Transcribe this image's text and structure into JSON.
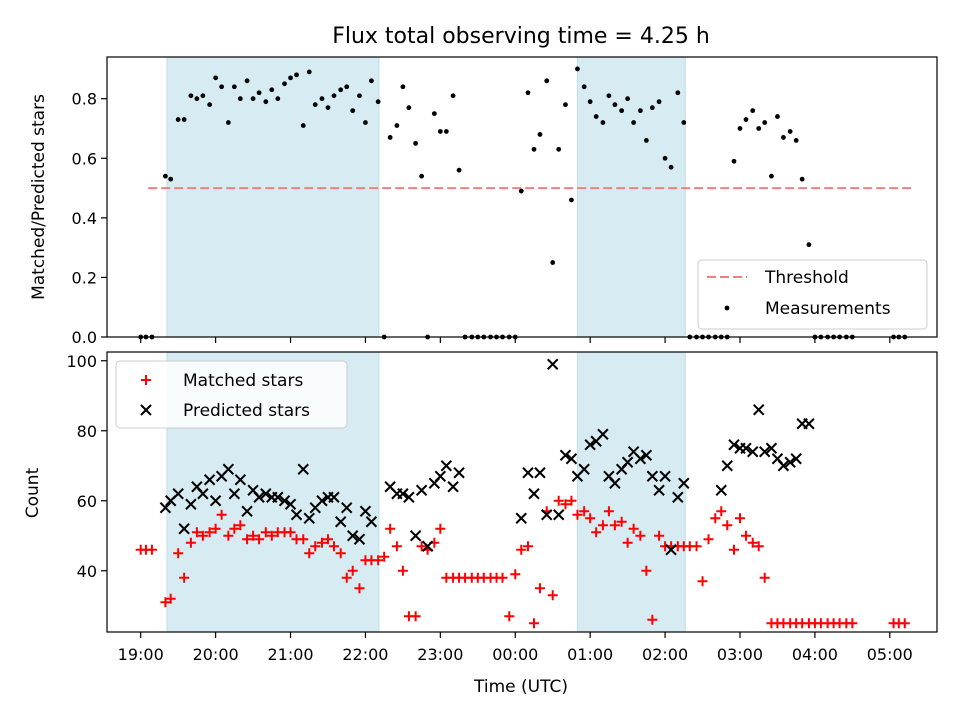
{
  "title": "Flux total observing time = 4.25 h",
  "chart_data": [
    {
      "type": "scatter",
      "ylabel": "Matched/Predicted stars",
      "ylim": [
        0,
        0.94
      ],
      "yticks": [
        "0.0",
        "0.2",
        "0.4",
        "0.6",
        "0.8"
      ],
      "ytick_values": [
        0,
        0.2,
        0.4,
        0.6,
        0.8
      ],
      "xlim": [
        -0.45,
        10.63
      ],
      "shaded_intervals": [
        [
          0.35,
          3.18
        ],
        [
          5.83,
          7.27
        ]
      ],
      "threshold": {
        "name": "Threshold",
        "value": 0.5,
        "x_range": [
          0.1,
          10.3
        ],
        "color": "#f08080"
      },
      "legend": {
        "placement": "lower right",
        "entries": [
          "Threshold",
          "Measurements"
        ]
      },
      "series": [
        {
          "name": "Measurements",
          "color": "#000000",
          "x": [
            0.0,
            0.07,
            0.15,
            0.33,
            0.4,
            0.5,
            0.58,
            0.67,
            0.75,
            0.83,
            0.92,
            1.0,
            1.08,
            1.17,
            1.25,
            1.33,
            1.42,
            1.5,
            1.58,
            1.67,
            1.75,
            1.83,
            1.92,
            2.0,
            2.08,
            2.17,
            2.25,
            2.33,
            2.42,
            2.5,
            2.58,
            2.67,
            2.75,
            2.83,
            2.92,
            3.0,
            3.08,
            3.17,
            3.25,
            3.33,
            3.42,
            3.5,
            3.58,
            3.67,
            3.75,
            3.83,
            3.92,
            4.0,
            4.08,
            4.17,
            4.25,
            4.33,
            4.42,
            4.5,
            4.58,
            4.67,
            4.75,
            4.83,
            4.92,
            5.0,
            5.08,
            5.17,
            5.25,
            5.33,
            5.42,
            5.5,
            5.58,
            5.67,
            5.75,
            5.83,
            5.92,
            6.0,
            6.08,
            6.17,
            6.25,
            6.33,
            6.42,
            6.5,
            6.58,
            6.67,
            6.75,
            6.83,
            6.92,
            7.0,
            7.08,
            7.17,
            7.25,
            7.33,
            7.42,
            7.5,
            7.58,
            7.67,
            7.75,
            7.83,
            7.92,
            8.0,
            8.08,
            8.17,
            8.25,
            8.33,
            8.42,
            8.5,
            8.58,
            8.67,
            8.75,
            8.83,
            8.92,
            9.0,
            9.08,
            9.17,
            9.25,
            9.33,
            9.42,
            9.5,
            10.05,
            10.12,
            10.2
          ],
          "y": [
            0,
            0,
            0,
            0.54,
            0.53,
            0.73,
            0.73,
            0.81,
            0.8,
            0.81,
            0.78,
            0.87,
            0.84,
            0.72,
            0.84,
            0.8,
            0.86,
            0.8,
            0.82,
            0.79,
            0.83,
            0.8,
            0.85,
            0.87,
            0.88,
            0.71,
            0.89,
            0.78,
            0.8,
            0.77,
            0.81,
            0.83,
            0.84,
            0.76,
            0.81,
            0.72,
            0.86,
            0.79,
            0,
            0.67,
            0.71,
            0.84,
            0.77,
            0.65,
            0.54,
            0,
            0.75,
            0.69,
            0.69,
            0.81,
            0.56,
            0,
            0,
            0,
            0,
            0,
            0,
            0,
            0,
            0,
            0.49,
            0.82,
            0.63,
            0.68,
            0.86,
            0.25,
            0.63,
            0.78,
            0.46,
            0.9,
            0.84,
            0.79,
            0.74,
            0.72,
            0.81,
            0.78,
            0.76,
            0.8,
            0.72,
            0.76,
            0.66,
            0.77,
            0.79,
            0.6,
            0.57,
            0.82,
            0.72,
            0,
            0,
            0,
            0,
            0,
            0,
            0,
            0.59,
            0.7,
            0.73,
            0.76,
            0.7,
            0.72,
            0.54,
            0.74,
            0.67,
            0.69,
            0.66,
            0.53,
            0.31,
            0,
            0,
            0,
            0,
            0,
            0,
            0,
            0,
            0,
            0
          ]
        }
      ]
    },
    {
      "type": "scatter",
      "ylabel": "Count",
      "xlabel": "Time (UTC)",
      "ylim": [
        22.5,
        102.5
      ],
      "yticks": [
        "40",
        "60",
        "80",
        "100"
      ],
      "ytick_values": [
        40,
        60,
        80,
        100
      ],
      "xlim": [
        -0.45,
        10.63
      ],
      "xticks": [
        "19:00",
        "20:00",
        "21:00",
        "22:00",
        "23:00",
        "00:00",
        "01:00",
        "02:00",
        "03:00",
        "04:00",
        "05:00"
      ],
      "xtick_values": [
        0,
        1,
        2,
        3,
        4,
        5,
        6,
        7,
        8,
        9,
        10
      ],
      "shaded_intervals": [
        [
          0.35,
          3.18
        ],
        [
          5.83,
          7.27
        ]
      ],
      "legend": {
        "placement": "upper left",
        "entries": [
          "Matched stars",
          "Predicted stars"
        ]
      },
      "series": [
        {
          "name": "Matched stars",
          "marker": "+",
          "color": "#ff0000",
          "x": [
            0.0,
            0.07,
            0.15,
            0.33,
            0.4,
            0.5,
            0.58,
            0.67,
            0.75,
            0.83,
            0.92,
            1.0,
            1.08,
            1.17,
            1.25,
            1.33,
            1.42,
            1.5,
            1.58,
            1.67,
            1.75,
            1.83,
            1.92,
            2.0,
            2.08,
            2.17,
            2.25,
            2.33,
            2.42,
            2.5,
            2.58,
            2.67,
            2.75,
            2.83,
            2.92,
            3.0,
            3.08,
            3.17,
            3.25,
            3.33,
            3.42,
            3.5,
            3.58,
            3.67,
            3.75,
            3.83,
            3.92,
            4.0,
            4.08,
            4.17,
            4.25,
            4.33,
            4.42,
            4.5,
            4.58,
            4.67,
            4.75,
            4.83,
            4.92,
            5.0,
            5.08,
            5.17,
            5.25,
            5.33,
            5.42,
            5.5,
            5.58,
            5.67,
            5.75,
            5.83,
            5.92,
            6.0,
            6.08,
            6.17,
            6.25,
            6.33,
            6.42,
            6.5,
            6.58,
            6.67,
            6.75,
            6.83,
            6.92,
            7.0,
            7.08,
            7.17,
            7.25,
            7.33,
            7.42,
            7.5,
            7.58,
            7.67,
            7.75,
            7.83,
            7.92,
            8.0,
            8.08,
            8.17,
            8.25,
            8.33,
            8.42,
            8.5,
            8.58,
            8.67,
            8.75,
            8.83,
            8.92,
            9.0,
            9.08,
            9.17,
            9.25,
            9.33,
            9.42,
            9.5,
            10.05,
            10.12,
            10.2
          ],
          "y": [
            46,
            46,
            46,
            31,
            32,
            45,
            38,
            48,
            51,
            50,
            51,
            52,
            56,
            50,
            52,
            53,
            49,
            50,
            49,
            51,
            50,
            51,
            51,
            51,
            49,
            49,
            45,
            47,
            48,
            49,
            47,
            45,
            38,
            40,
            35,
            43,
            43,
            43,
            44,
            52,
            47,
            40,
            27,
            27,
            47,
            46,
            48,
            52,
            38,
            38,
            38,
            38,
            38,
            38,
            38,
            38,
            38,
            38,
            27,
            39,
            46,
            47,
            25,
            35,
            57,
            33,
            60,
            59,
            60,
            56,
            57,
            55,
            51,
            53,
            57,
            53,
            54,
            48,
            52,
            50,
            40,
            26,
            50,
            47,
            47,
            47,
            47,
            47,
            47,
            37,
            49,
            55,
            57,
            53,
            46,
            55,
            50,
            48,
            47,
            38,
            25,
            25,
            25,
            25,
            25,
            25,
            25,
            25,
            25,
            25,
            25,
            25,
            25,
            25,
            25,
            25,
            25
          ]
        },
        {
          "name": "Predicted stars",
          "marker": "x",
          "color": "#000000",
          "x": [
            0.33,
            0.4,
            0.5,
            0.58,
            0.67,
            0.75,
            0.83,
            0.92,
            1.0,
            1.08,
            1.17,
            1.25,
            1.33,
            1.42,
            1.5,
            1.58,
            1.67,
            1.75,
            1.83,
            1.92,
            2.0,
            2.08,
            2.17,
            2.25,
            2.33,
            2.42,
            2.5,
            2.58,
            2.67,
            2.75,
            2.83,
            2.92,
            3.0,
            3.08,
            3.33,
            3.42,
            3.5,
            3.58,
            3.67,
            3.75,
            3.83,
            3.92,
            4.0,
            4.08,
            4.17,
            4.25,
            5.08,
            5.17,
            5.25,
            5.33,
            5.42,
            5.5,
            5.58,
            5.67,
            5.75,
            5.83,
            5.92,
            6.0,
            6.08,
            6.17,
            6.25,
            6.33,
            6.42,
            6.5,
            6.58,
            6.67,
            6.75,
            6.83,
            6.92,
            7.0,
            7.08,
            7.17,
            7.25,
            7.75,
            7.83,
            7.92,
            8.0,
            8.08,
            8.17,
            8.25,
            8.33,
            8.42,
            8.5,
            8.58,
            8.67,
            8.75,
            8.83,
            8.92
          ],
          "y": [
            58,
            60,
            62,
            52,
            59,
            64,
            62,
            66,
            60,
            67,
            69,
            62,
            66,
            57,
            63,
            61,
            62,
            61,
            61,
            60,
            59,
            56,
            69,
            55,
            58,
            60,
            61,
            61,
            54,
            58,
            50,
            49,
            57,
            54,
            64,
            62,
            62,
            61,
            50,
            63,
            47,
            65,
            67,
            70,
            64,
            68,
            55,
            68,
            62,
            68,
            56,
            99,
            56,
            73,
            72,
            67,
            69,
            76,
            77,
            79,
            67,
            65,
            69,
            71,
            74,
            72,
            73,
            67,
            63,
            67,
            46,
            61,
            65,
            63,
            70,
            76,
            75,
            75,
            74,
            86,
            74,
            75,
            72,
            70,
            71,
            72,
            82,
            82
          ]
        }
      ]
    }
  ]
}
